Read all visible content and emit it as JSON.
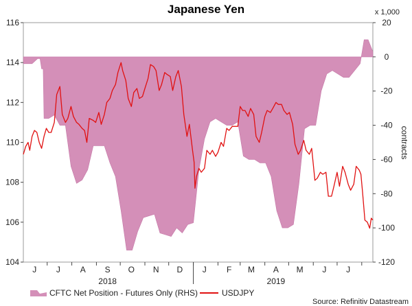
{
  "chart_data": {
    "type": "line+area",
    "title": "Japanese Yen",
    "source": "Source: Refinitiv Datastream",
    "left_axis": {
      "label": "",
      "range": [
        104,
        116
      ],
      "ticks": [
        "116",
        "114",
        "112",
        "110",
        "108",
        "106",
        "104"
      ]
    },
    "right_axis": {
      "label": "contracts",
      "scale_note": "x 1,000",
      "range": [
        -120,
        20
      ],
      "ticks": [
        "20",
        "0",
        "-20",
        "-40",
        "-60",
        "-80",
        "-100",
        "-120"
      ]
    },
    "x_axis": {
      "start": "2018-06-01",
      "end": "2019-08-15",
      "month_ticks": [
        "J",
        "J",
        "A",
        "S",
        "O",
        "N",
        "D",
        "J",
        "F",
        "M",
        "A",
        "M",
        "J",
        "J"
      ],
      "year_labels": [
        "2018",
        "2019"
      ]
    },
    "series": [
      {
        "name": "CFTC Net Position - Futures Only (RHS)",
        "axis": "right",
        "style": "area",
        "color": "#d48fb8",
        "points": [
          [
            "2018-06-01",
            -4
          ],
          [
            "2018-06-06",
            -4
          ],
          [
            "2018-06-12",
            -4
          ],
          [
            "2018-06-19",
            -1
          ],
          [
            "2018-06-22",
            -1
          ],
          [
            "2018-06-24",
            -7
          ],
          [
            "2018-06-26",
            -7
          ],
          [
            "2018-06-27",
            -36
          ],
          [
            "2018-07-03",
            -36
          ],
          [
            "2018-07-10",
            -34
          ],
          [
            "2018-07-17",
            -40
          ],
          [
            "2018-07-24",
            -40
          ],
          [
            "2018-07-31",
            -64
          ],
          [
            "2018-08-07",
            -74
          ],
          [
            "2018-08-14",
            -72
          ],
          [
            "2018-08-21",
            -66
          ],
          [
            "2018-08-28",
            -52
          ],
          [
            "2018-09-04",
            -52
          ],
          [
            "2018-09-11",
            -52
          ],
          [
            "2018-09-18",
            -62
          ],
          [
            "2018-09-25",
            -70
          ],
          [
            "2018-10-02",
            -90
          ],
          [
            "2018-10-09",
            -113
          ],
          [
            "2018-10-16",
            -113
          ],
          [
            "2018-10-23",
            -102
          ],
          [
            "2018-10-30",
            -94
          ],
          [
            "2018-11-06",
            -93
          ],
          [
            "2018-11-13",
            -92
          ],
          [
            "2018-11-20",
            -103
          ],
          [
            "2018-11-27",
            -104
          ],
          [
            "2018-12-04",
            -105
          ],
          [
            "2018-12-11",
            -100
          ],
          [
            "2018-12-18",
            -103
          ],
          [
            "2018-12-25",
            -98
          ],
          [
            "2019-01-01",
            -97
          ],
          [
            "2019-01-08",
            -66
          ],
          [
            "2019-01-15",
            -48
          ],
          [
            "2019-01-22",
            -38
          ],
          [
            "2019-01-29",
            -36
          ],
          [
            "2019-02-05",
            -38
          ],
          [
            "2019-02-12",
            -40
          ],
          [
            "2019-02-19",
            -40
          ],
          [
            "2019-02-26",
            -38
          ],
          [
            "2019-03-05",
            -58
          ],
          [
            "2019-03-12",
            -60
          ],
          [
            "2019-03-19",
            -60
          ],
          [
            "2019-03-26",
            -62
          ],
          [
            "2019-04-02",
            -62
          ],
          [
            "2019-04-09",
            -70
          ],
          [
            "2019-04-16",
            -90
          ],
          [
            "2019-04-23",
            -100
          ],
          [
            "2019-04-30",
            -100
          ],
          [
            "2019-05-07",
            -98
          ],
          [
            "2019-05-14",
            -74
          ],
          [
            "2019-05-21",
            -42
          ],
          [
            "2019-05-28",
            -40
          ],
          [
            "2019-06-04",
            -40
          ],
          [
            "2019-06-11",
            -20
          ],
          [
            "2019-06-18",
            -10
          ],
          [
            "2019-06-25",
            -8
          ],
          [
            "2019-07-02",
            -10
          ],
          [
            "2019-07-09",
            -12
          ],
          [
            "2019-07-16",
            -12
          ],
          [
            "2019-07-23",
            -8
          ],
          [
            "2019-07-30",
            -4
          ],
          [
            "2019-08-04",
            10
          ],
          [
            "2019-08-09",
            10
          ],
          [
            "2019-08-15",
            3
          ]
        ]
      },
      {
        "name": "USDJPY",
        "axis": "left",
        "style": "line",
        "color": "#e01010",
        "points": [
          [
            "2018-06-01",
            109.4
          ],
          [
            "2018-06-04",
            109.8
          ],
          [
            "2018-06-07",
            110.0
          ],
          [
            "2018-06-09",
            109.6
          ],
          [
            "2018-06-12",
            110.3
          ],
          [
            "2018-06-15",
            110.6
          ],
          [
            "2018-06-18",
            110.5
          ],
          [
            "2018-06-21",
            110.0
          ],
          [
            "2018-06-24",
            109.7
          ],
          [
            "2018-06-27",
            110.3
          ],
          [
            "2018-06-30",
            110.7
          ],
          [
            "2018-07-03",
            110.5
          ],
          [
            "2018-07-06",
            110.5
          ],
          [
            "2018-07-10",
            111.0
          ],
          [
            "2018-07-13",
            112.4
          ],
          [
            "2018-07-17",
            112.8
          ],
          [
            "2018-07-20",
            111.4
          ],
          [
            "2018-07-24",
            111.0
          ],
          [
            "2018-07-27",
            111.2
          ],
          [
            "2018-07-31",
            111.8
          ],
          [
            "2018-08-03",
            111.3
          ],
          [
            "2018-08-07",
            111.0
          ],
          [
            "2018-08-10",
            110.9
          ],
          [
            "2018-08-14",
            110.7
          ],
          [
            "2018-08-17",
            110.6
          ],
          [
            "2018-08-20",
            110.0
          ],
          [
            "2018-08-23",
            111.2
          ],
          [
            "2018-08-28",
            111.1
          ],
          [
            "2018-08-31",
            111.0
          ],
          [
            "2018-09-04",
            111.5
          ],
          [
            "2018-09-07",
            110.9
          ],
          [
            "2018-09-11",
            111.4
          ],
          [
            "2018-09-14",
            112.0
          ],
          [
            "2018-09-18",
            112.2
          ],
          [
            "2018-09-21",
            112.6
          ],
          [
            "2018-09-25",
            112.9
          ],
          [
            "2018-09-28",
            113.5
          ],
          [
            "2018-10-02",
            114.0
          ],
          [
            "2018-10-04",
            113.6
          ],
          [
            "2018-10-08",
            113.1
          ],
          [
            "2018-10-11",
            112.2
          ],
          [
            "2018-10-15",
            111.8
          ],
          [
            "2018-10-18",
            112.5
          ],
          [
            "2018-10-22",
            112.7
          ],
          [
            "2018-10-25",
            112.2
          ],
          [
            "2018-10-29",
            112.3
          ],
          [
            "2018-11-01",
            112.7
          ],
          [
            "2018-11-05",
            113.2
          ],
          [
            "2018-11-08",
            113.9
          ],
          [
            "2018-11-12",
            113.8
          ],
          [
            "2018-11-15",
            113.6
          ],
          [
            "2018-11-19",
            112.6
          ],
          [
            "2018-11-22",
            112.9
          ],
          [
            "2018-11-26",
            113.5
          ],
          [
            "2018-11-29",
            113.4
          ],
          [
            "2018-12-03",
            113.3
          ],
          [
            "2018-12-06",
            112.6
          ],
          [
            "2018-12-10",
            113.3
          ],
          [
            "2018-12-13",
            113.6
          ],
          [
            "2018-12-17",
            112.8
          ],
          [
            "2018-12-20",
            111.4
          ],
          [
            "2018-12-24",
            110.3
          ],
          [
            "2018-12-27",
            110.9
          ],
          [
            "2018-12-31",
            109.6
          ],
          [
            "2019-01-02",
            109.0
          ],
          [
            "2019-01-03",
            107.7
          ],
          [
            "2019-01-05",
            108.3
          ],
          [
            "2019-01-08",
            108.7
          ],
          [
            "2019-01-11",
            108.5
          ],
          [
            "2019-01-15",
            108.7
          ],
          [
            "2019-01-18",
            109.6
          ],
          [
            "2019-01-22",
            109.4
          ],
          [
            "2019-01-25",
            109.6
          ],
          [
            "2019-01-29",
            109.3
          ],
          [
            "2019-02-01",
            109.5
          ],
          [
            "2019-02-05",
            110.0
          ],
          [
            "2019-02-08",
            109.8
          ],
          [
            "2019-02-12",
            110.7
          ],
          [
            "2019-02-15",
            110.6
          ],
          [
            "2019-02-19",
            110.8
          ],
          [
            "2019-02-22",
            110.8
          ],
          [
            "2019-02-26",
            110.8
          ],
          [
            "2019-03-01",
            111.8
          ],
          [
            "2019-03-04",
            111.6
          ],
          [
            "2019-03-07",
            111.6
          ],
          [
            "2019-03-11",
            111.3
          ],
          [
            "2019-03-14",
            111.7
          ],
          [
            "2019-03-18",
            111.4
          ],
          [
            "2019-03-21",
            110.3
          ],
          [
            "2019-03-25",
            110.0
          ],
          [
            "2019-03-28",
            110.5
          ],
          [
            "2019-04-01",
            111.3
          ],
          [
            "2019-04-04",
            111.6
          ],
          [
            "2019-04-08",
            111.5
          ],
          [
            "2019-04-11",
            111.7
          ],
          [
            "2019-04-15",
            112.0
          ],
          [
            "2019-04-18",
            111.9
          ],
          [
            "2019-04-22",
            111.9
          ],
          [
            "2019-04-25",
            111.6
          ],
          [
            "2019-04-29",
            111.4
          ],
          [
            "2019-05-02",
            111.5
          ],
          [
            "2019-05-06",
            110.9
          ],
          [
            "2019-05-09",
            109.9
          ],
          [
            "2019-05-13",
            109.4
          ],
          [
            "2019-05-16",
            109.6
          ],
          [
            "2019-05-20",
            110.1
          ],
          [
            "2019-05-23",
            109.6
          ],
          [
            "2019-05-27",
            109.4
          ],
          [
            "2019-05-30",
            109.7
          ],
          [
            "2019-06-03",
            108.1
          ],
          [
            "2019-06-06",
            108.2
          ],
          [
            "2019-06-10",
            108.5
          ],
          [
            "2019-06-13",
            108.4
          ],
          [
            "2019-06-17",
            108.5
          ],
          [
            "2019-06-20",
            107.3
          ],
          [
            "2019-06-24",
            107.3
          ],
          [
            "2019-06-27",
            107.8
          ],
          [
            "2019-07-01",
            108.5
          ],
          [
            "2019-07-04",
            107.8
          ],
          [
            "2019-07-08",
            108.8
          ],
          [
            "2019-07-11",
            108.5
          ],
          [
            "2019-07-15",
            107.9
          ],
          [
            "2019-07-18",
            107.6
          ],
          [
            "2019-07-22",
            107.9
          ],
          [
            "2019-07-25",
            108.8
          ],
          [
            "2019-07-29",
            108.6
          ],
          [
            "2019-07-31",
            108.4
          ],
          [
            "2019-08-02",
            107.5
          ],
          [
            "2019-08-05",
            106.1
          ],
          [
            "2019-08-08",
            106.0
          ],
          [
            "2019-08-11",
            105.7
          ],
          [
            "2019-08-13",
            106.2
          ],
          [
            "2019-08-15",
            106.1
          ]
        ]
      }
    ],
    "legend": [
      {
        "label": "CFTC Net Position - Futures Only (RHS)",
        "symbol": "area",
        "color": "#d48fb8"
      },
      {
        "label": "USDJPY",
        "symbol": "line",
        "color": "#e01010"
      }
    ]
  }
}
